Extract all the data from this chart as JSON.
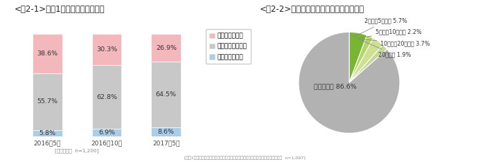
{
  "bar_title": "<図2-1>今後1年間の景気の見通し",
  "pie_title": "<図2-2>何年後に景気が良くなると思うか",
  "bar_categories": [
    "2016年5月",
    "2016年10月",
    "2017年5月"
  ],
  "bar_note": "[全体ベース  n=1,200]",
  "pie_note": "[今後1年間で景気が「変わらないと思う」「悪くなると思う」と回答した人ベース  n=1,097]",
  "bar_data": {
    "悪くなると思う": [
      38.6,
      30.3,
      26.9
    ],
    "変わらないと思う": [
      55.7,
      62.8,
      64.5
    ],
    "良くなると思う": [
      5.8,
      6.9,
      8.6
    ]
  },
  "bar_colors": {
    "良くなると思う": "#aacde8",
    "変わらないと思う": "#c8c8c8",
    "悪くなると思う": "#f2b8bc"
  },
  "legend_order": [
    "悪くなると思う",
    "変わらないと思う",
    "良くなると思う"
  ],
  "pie_values": [
    5.7,
    2.2,
    3.7,
    1.9,
    86.6
  ],
  "pie_colors": [
    "#78b532",
    "#b5d46a",
    "#cfe090",
    "#c5d898",
    "#b2b2b2"
  ],
  "pie_labels": [
    "2年後～5年未満 5.7%",
    "5年後～10年未満 2.2%",
    "10年後～20年未満 3.7%",
    "20年後～ 1.9%"
  ],
  "pie_inner_label": "わからない 86.6%",
  "bg_color": "#ffffff"
}
